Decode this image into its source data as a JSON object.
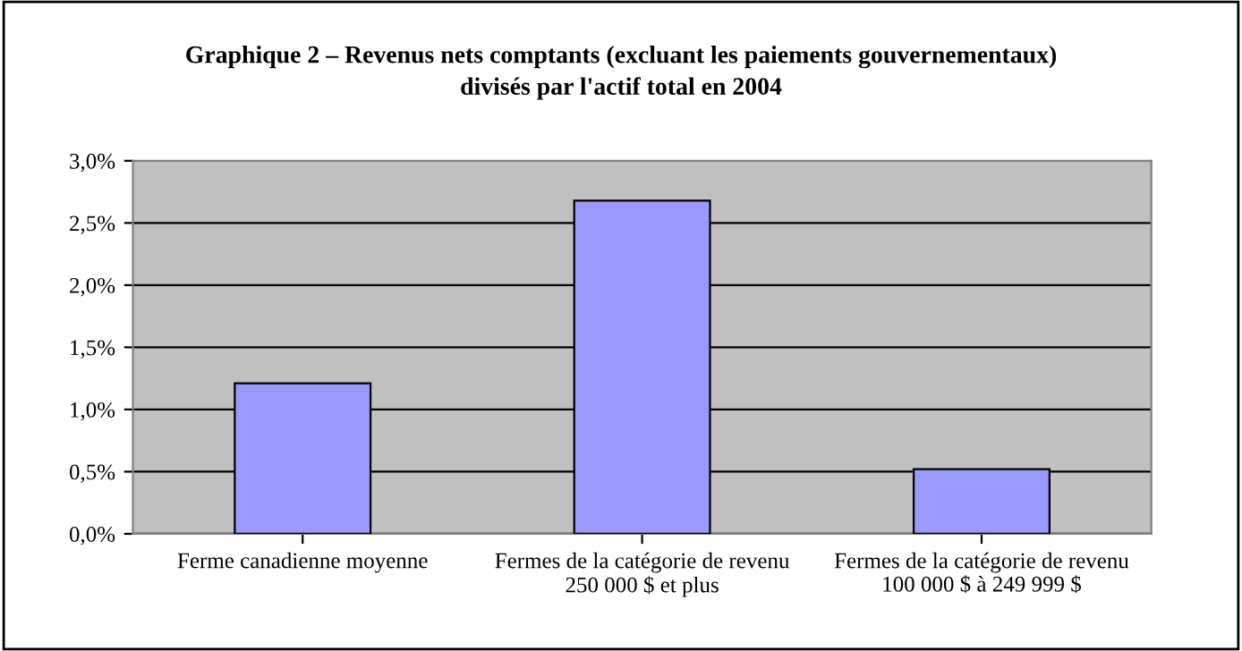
{
  "chart_data": {
    "type": "bar",
    "title": "Graphique 2 – Revenus nets comptants (excluant les paiements gouvernementaux)\ndivisés par l'actif total en 2004",
    "categories": [
      "Ferme canadienne moyenne",
      "Fermes de la catégorie de revenu\n250 000 $ et plus",
      "Fermes de la catégorie de revenu\n100 000 $ à 249 999 $"
    ],
    "values": [
      1.21,
      2.68,
      0.52
    ],
    "color": "#9999ff",
    "ylim": [
      0,
      3
    ],
    "yticks": [
      {
        "value": 0,
        "label": "0,0%"
      },
      {
        "value": 0.5,
        "label": "0,5%"
      },
      {
        "value": 1,
        "label": "1,0%"
      },
      {
        "value": 1.5,
        "label": "1,5%"
      },
      {
        "value": 2,
        "label": "2,0%"
      },
      {
        "value": 2.5,
        "label": "2,5%"
      },
      {
        "value": 3,
        "label": "3,0%"
      }
    ],
    "grid": "y",
    "legend": false
  }
}
